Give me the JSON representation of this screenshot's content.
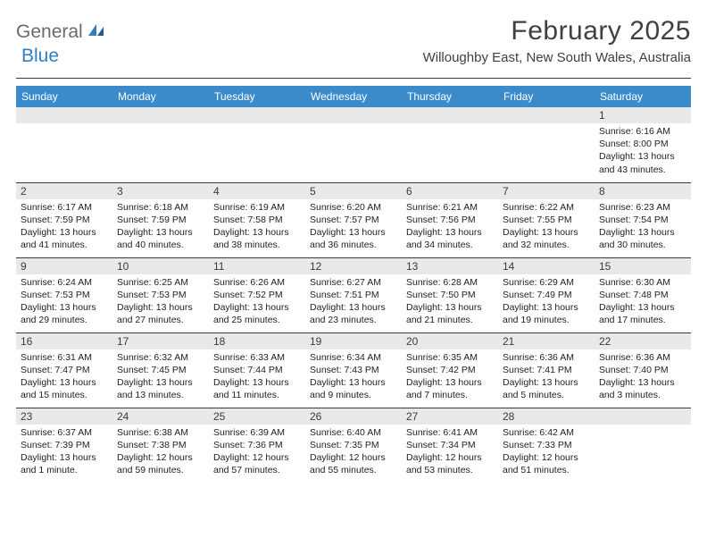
{
  "logo": {
    "part1": "General",
    "part2": "Blue"
  },
  "title": "February 2025",
  "location": "Willoughby East, New South Wales, Australia",
  "colors": {
    "header_bg": "#3b8bca",
    "header_fg": "#ffffff",
    "daynum_bg": "#e9e9e9",
    "rule": "#3a3a3a",
    "logo_gray": "#6b6b6b",
    "logo_blue": "#2f7ec2"
  },
  "weekdays": [
    "Sunday",
    "Monday",
    "Tuesday",
    "Wednesday",
    "Thursday",
    "Friday",
    "Saturday"
  ],
  "weeks": [
    [
      null,
      null,
      null,
      null,
      null,
      null,
      {
        "n": "1",
        "sr": "Sunrise: 6:16 AM",
        "ss": "Sunset: 8:00 PM",
        "dl": "Daylight: 13 hours and 43 minutes."
      }
    ],
    [
      {
        "n": "2",
        "sr": "Sunrise: 6:17 AM",
        "ss": "Sunset: 7:59 PM",
        "dl": "Daylight: 13 hours and 41 minutes."
      },
      {
        "n": "3",
        "sr": "Sunrise: 6:18 AM",
        "ss": "Sunset: 7:59 PM",
        "dl": "Daylight: 13 hours and 40 minutes."
      },
      {
        "n": "4",
        "sr": "Sunrise: 6:19 AM",
        "ss": "Sunset: 7:58 PM",
        "dl": "Daylight: 13 hours and 38 minutes."
      },
      {
        "n": "5",
        "sr": "Sunrise: 6:20 AM",
        "ss": "Sunset: 7:57 PM",
        "dl": "Daylight: 13 hours and 36 minutes."
      },
      {
        "n": "6",
        "sr": "Sunrise: 6:21 AM",
        "ss": "Sunset: 7:56 PM",
        "dl": "Daylight: 13 hours and 34 minutes."
      },
      {
        "n": "7",
        "sr": "Sunrise: 6:22 AM",
        "ss": "Sunset: 7:55 PM",
        "dl": "Daylight: 13 hours and 32 minutes."
      },
      {
        "n": "8",
        "sr": "Sunrise: 6:23 AM",
        "ss": "Sunset: 7:54 PM",
        "dl": "Daylight: 13 hours and 30 minutes."
      }
    ],
    [
      {
        "n": "9",
        "sr": "Sunrise: 6:24 AM",
        "ss": "Sunset: 7:53 PM",
        "dl": "Daylight: 13 hours and 29 minutes."
      },
      {
        "n": "10",
        "sr": "Sunrise: 6:25 AM",
        "ss": "Sunset: 7:53 PM",
        "dl": "Daylight: 13 hours and 27 minutes."
      },
      {
        "n": "11",
        "sr": "Sunrise: 6:26 AM",
        "ss": "Sunset: 7:52 PM",
        "dl": "Daylight: 13 hours and 25 minutes."
      },
      {
        "n": "12",
        "sr": "Sunrise: 6:27 AM",
        "ss": "Sunset: 7:51 PM",
        "dl": "Daylight: 13 hours and 23 minutes."
      },
      {
        "n": "13",
        "sr": "Sunrise: 6:28 AM",
        "ss": "Sunset: 7:50 PM",
        "dl": "Daylight: 13 hours and 21 minutes."
      },
      {
        "n": "14",
        "sr": "Sunrise: 6:29 AM",
        "ss": "Sunset: 7:49 PM",
        "dl": "Daylight: 13 hours and 19 minutes."
      },
      {
        "n": "15",
        "sr": "Sunrise: 6:30 AM",
        "ss": "Sunset: 7:48 PM",
        "dl": "Daylight: 13 hours and 17 minutes."
      }
    ],
    [
      {
        "n": "16",
        "sr": "Sunrise: 6:31 AM",
        "ss": "Sunset: 7:47 PM",
        "dl": "Daylight: 13 hours and 15 minutes."
      },
      {
        "n": "17",
        "sr": "Sunrise: 6:32 AM",
        "ss": "Sunset: 7:45 PM",
        "dl": "Daylight: 13 hours and 13 minutes."
      },
      {
        "n": "18",
        "sr": "Sunrise: 6:33 AM",
        "ss": "Sunset: 7:44 PM",
        "dl": "Daylight: 13 hours and 11 minutes."
      },
      {
        "n": "19",
        "sr": "Sunrise: 6:34 AM",
        "ss": "Sunset: 7:43 PM",
        "dl": "Daylight: 13 hours and 9 minutes."
      },
      {
        "n": "20",
        "sr": "Sunrise: 6:35 AM",
        "ss": "Sunset: 7:42 PM",
        "dl": "Daylight: 13 hours and 7 minutes."
      },
      {
        "n": "21",
        "sr": "Sunrise: 6:36 AM",
        "ss": "Sunset: 7:41 PM",
        "dl": "Daylight: 13 hours and 5 minutes."
      },
      {
        "n": "22",
        "sr": "Sunrise: 6:36 AM",
        "ss": "Sunset: 7:40 PM",
        "dl": "Daylight: 13 hours and 3 minutes."
      }
    ],
    [
      {
        "n": "23",
        "sr": "Sunrise: 6:37 AM",
        "ss": "Sunset: 7:39 PM",
        "dl": "Daylight: 13 hours and 1 minute."
      },
      {
        "n": "24",
        "sr": "Sunrise: 6:38 AM",
        "ss": "Sunset: 7:38 PM",
        "dl": "Daylight: 12 hours and 59 minutes."
      },
      {
        "n": "25",
        "sr": "Sunrise: 6:39 AM",
        "ss": "Sunset: 7:36 PM",
        "dl": "Daylight: 12 hours and 57 minutes."
      },
      {
        "n": "26",
        "sr": "Sunrise: 6:40 AM",
        "ss": "Sunset: 7:35 PM",
        "dl": "Daylight: 12 hours and 55 minutes."
      },
      {
        "n": "27",
        "sr": "Sunrise: 6:41 AM",
        "ss": "Sunset: 7:34 PM",
        "dl": "Daylight: 12 hours and 53 minutes."
      },
      {
        "n": "28",
        "sr": "Sunrise: 6:42 AM",
        "ss": "Sunset: 7:33 PM",
        "dl": "Daylight: 12 hours and 51 minutes."
      },
      null
    ]
  ]
}
